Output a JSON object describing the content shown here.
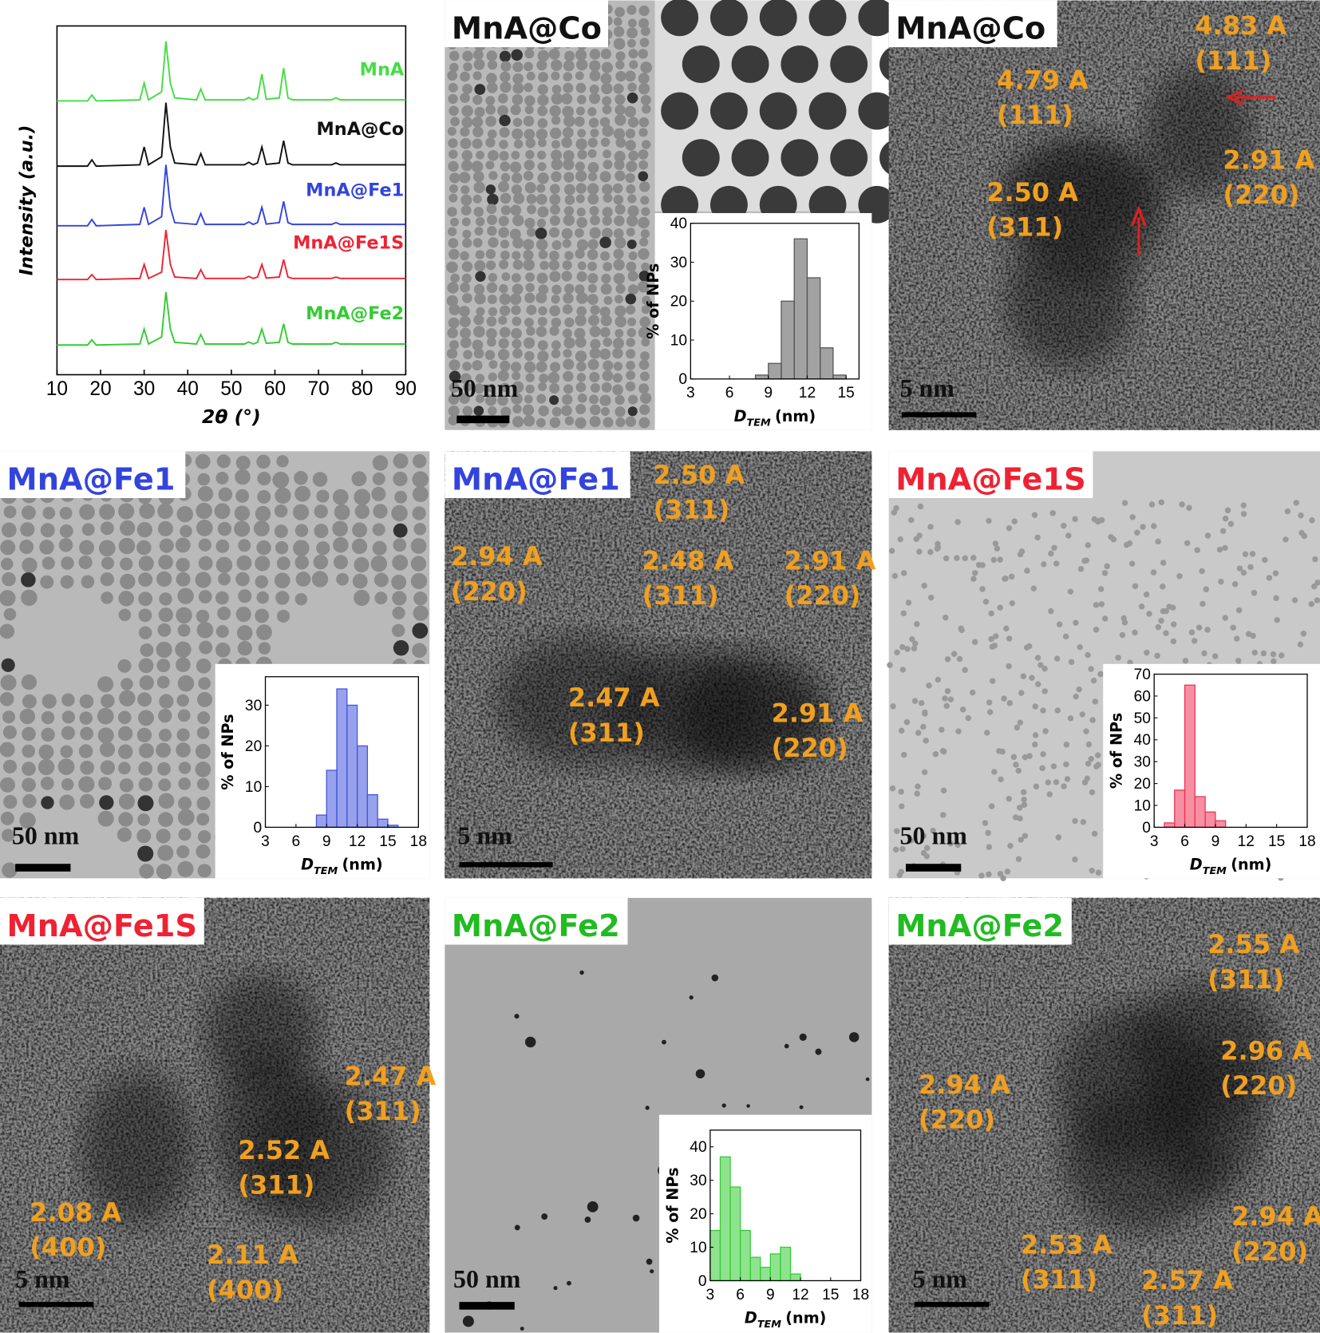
{
  "chart_data": [
    {
      "type": "line",
      "x_label": "2θ (°)",
      "y_label": "Intensity (a.u.)",
      "xlim": [
        10,
        90
      ],
      "xticks": [
        10,
        20,
        30,
        40,
        50,
        60,
        70,
        80,
        90
      ],
      "ylim": [
        0,
        100
      ],
      "x": [
        10,
        17,
        18,
        19,
        29,
        30,
        31,
        34,
        35,
        36,
        37,
        42,
        43,
        44,
        53,
        54,
        55,
        56,
        57,
        58,
        61,
        62,
        63,
        64,
        73,
        74,
        75,
        90
      ],
      "series": [
        {
          "name": "MnA",
          "color": "#44dd44",
          "values": [
            78.5,
            78.5,
            80.2,
            78.5,
            78.8,
            83.6,
            78.8,
            81.1,
            95.6,
            83.6,
            79.4,
            78.8,
            81.9,
            78.8,
            78.8,
            79.5,
            78.8,
            79.4,
            86.2,
            79.0,
            79.4,
            87.9,
            79.4,
            78.8,
            78.8,
            79.4,
            78.8,
            78.8
          ]
        },
        {
          "name": "MnA@Co",
          "color": "#111111",
          "values": [
            59.8,
            59.8,
            61.6,
            59.8,
            60.2,
            65.3,
            60.2,
            62.5,
            78.0,
            65.3,
            60.7,
            60.2,
            63.4,
            60.2,
            60.2,
            60.9,
            60.2,
            60.7,
            65.3,
            60.3,
            60.7,
            67.1,
            60.7,
            60.2,
            60.2,
            60.7,
            60.2,
            60.2
          ]
        },
        {
          "name": "MnA@Fe1",
          "color": "#3344dd",
          "values": [
            42.7,
            42.7,
            44.5,
            42.7,
            43.1,
            48.0,
            43.1,
            45.3,
            60.2,
            48.0,
            43.6,
            43.1,
            46.2,
            43.1,
            43.1,
            43.8,
            43.1,
            43.6,
            48.0,
            43.2,
            43.6,
            49.7,
            43.6,
            43.1,
            43.1,
            43.6,
            43.1,
            43.1
          ]
        },
        {
          "name": "MnA@Fe1S",
          "color": "#ee2233",
          "values": [
            27.3,
            27.3,
            28.7,
            27.3,
            27.6,
            31.6,
            27.6,
            29.4,
            41.5,
            31.6,
            28.0,
            27.6,
            30.1,
            27.6,
            27.6,
            28.2,
            27.6,
            28.0,
            31.6,
            27.7,
            28.0,
            33.0,
            28.0,
            27.6,
            27.6,
            28.0,
            27.6,
            27.6
          ]
        },
        {
          "name": "MnA@Fe2",
          "color": "#33cc33",
          "values": [
            8.5,
            8.5,
            10.0,
            8.5,
            8.8,
            13.1,
            8.8,
            10.8,
            23.7,
            13.1,
            9.3,
            8.8,
            11.5,
            8.8,
            8.8,
            9.4,
            8.8,
            9.3,
            13.1,
            9.0,
            9.3,
            14.6,
            9.3,
            8.8,
            8.8,
            9.3,
            8.8,
            8.8
          ]
        }
      ]
    },
    {
      "type": "histogram",
      "color": "#555555",
      "y_label": "% of NPs",
      "x_label": "D",
      "x_label_sub": "TEM",
      "x_label_unit": "(nm)",
      "xlim": [
        3,
        16
      ],
      "xticks": [
        3,
        6,
        9,
        12,
        15
      ],
      "ylim": [
        0,
        40
      ],
      "yticks": [
        0,
        10,
        20,
        30,
        40
      ],
      "bins": [
        8,
        9,
        10,
        11,
        12,
        13,
        14,
        15
      ],
      "counts": [
        1,
        4,
        20,
        36,
        26,
        8,
        1
      ]
    },
    {
      "type": "histogram",
      "color": "#4455dd",
      "y_label": "% of NPs",
      "x_label": "D",
      "x_label_sub": "TEM",
      "x_label_unit": "(nm)",
      "xlim": [
        3,
        18
      ],
      "xticks": [
        3,
        6,
        9,
        12,
        15,
        18
      ],
      "ylim": [
        0,
        37
      ],
      "yticks": [
        0,
        10,
        20,
        30
      ],
      "bins": [
        8,
        9,
        10,
        11,
        12,
        13,
        14,
        15,
        16
      ],
      "counts": [
        3,
        14,
        34,
        30,
        20,
        8,
        2,
        0.5
      ]
    },
    {
      "type": "histogram",
      "color": "#ee3355",
      "y_label": "% of NPs",
      "x_label": "D",
      "x_label_sub": "TEM",
      "x_label_unit": "(nm)",
      "xlim": [
        3,
        18
      ],
      "xticks": [
        3,
        6,
        9,
        12,
        15,
        18
      ],
      "ylim": [
        0,
        70
      ],
      "yticks": [
        0,
        10,
        20,
        30,
        40,
        50,
        60,
        70
      ],
      "bins": [
        4,
        5,
        6,
        7,
        8,
        9,
        10
      ],
      "counts": [
        2,
        17,
        65,
        14,
        7,
        3
      ]
    },
    {
      "type": "histogram",
      "color": "#33cc33",
      "y_label": "% of NPs",
      "x_label": "D",
      "x_label_sub": "TEM",
      "x_label_unit": "(nm)",
      "xlim": [
        3,
        18
      ],
      "xticks": [
        3,
        6,
        9,
        12,
        15,
        18
      ],
      "ylim": [
        0,
        45
      ],
      "yticks": [
        0,
        10,
        20,
        30,
        40
      ],
      "bins": [
        3,
        4,
        5,
        6,
        7,
        8,
        9,
        10,
        11,
        12
      ],
      "counts": [
        15,
        37,
        28,
        15,
        7,
        4,
        8,
        10,
        2
      ]
    }
  ],
  "panels": [
    {
      "label": "MnA@Co",
      "color": "#111111",
      "scale_bar": "50 nm"
    },
    {
      "label": "MnA@Co",
      "color": "#111111",
      "scale_bar": "5 nm",
      "annotations": [
        [
          "4.83 A",
          "(111)"
        ],
        [
          "4.79 A",
          "(111)"
        ],
        [
          "2.91 A",
          "(220)"
        ],
        [
          "2.50 A",
          "(311)"
        ]
      ]
    },
    {
      "label": "MnA@Fe1",
      "color": "#3344dd",
      "scale_bar": "50 nm"
    },
    {
      "label": "MnA@Fe1",
      "color": "#3344dd",
      "scale_bar": "5 nm",
      "annotations": [
        [
          "2.50 A",
          "(311)"
        ],
        [
          "2.94 A",
          "(220)"
        ],
        [
          "2.48 A",
          "(311)"
        ],
        [
          "2.91 A",
          "(220)"
        ],
        [
          "2.47 A",
          "(311)"
        ],
        [
          "2.91 A",
          "(220)"
        ]
      ]
    },
    {
      "label": "MnA@Fe1S",
      "color": "#ee2233",
      "scale_bar": "50 nm"
    },
    {
      "label": "MnA@Fe1S",
      "color": "#ee2233",
      "scale_bar": "5 nm",
      "annotations": [
        [
          "2.47 A",
          "(311)"
        ],
        [
          "2.52 A",
          "(311)"
        ],
        [
          "2.08 A",
          "(400)"
        ],
        [
          "2.11 A",
          "(400)"
        ]
      ]
    },
    {
      "label": "MnA@Fe2",
      "color": "#22bb22",
      "scale_bar": "50 nm"
    },
    {
      "label": "MnA@Fe2",
      "color": "#22bb22",
      "scale_bar": "5 nm",
      "annotations": [
        [
          "2.55 A",
          "(311)"
        ],
        [
          "2.96 A",
          "(220)"
        ],
        [
          "2.94 A",
          "(220)"
        ],
        [
          "2.94 A",
          "(220)"
        ],
        [
          "2.53 A",
          "(311)"
        ],
        [
          "2.57 A",
          "(311)"
        ]
      ]
    }
  ]
}
